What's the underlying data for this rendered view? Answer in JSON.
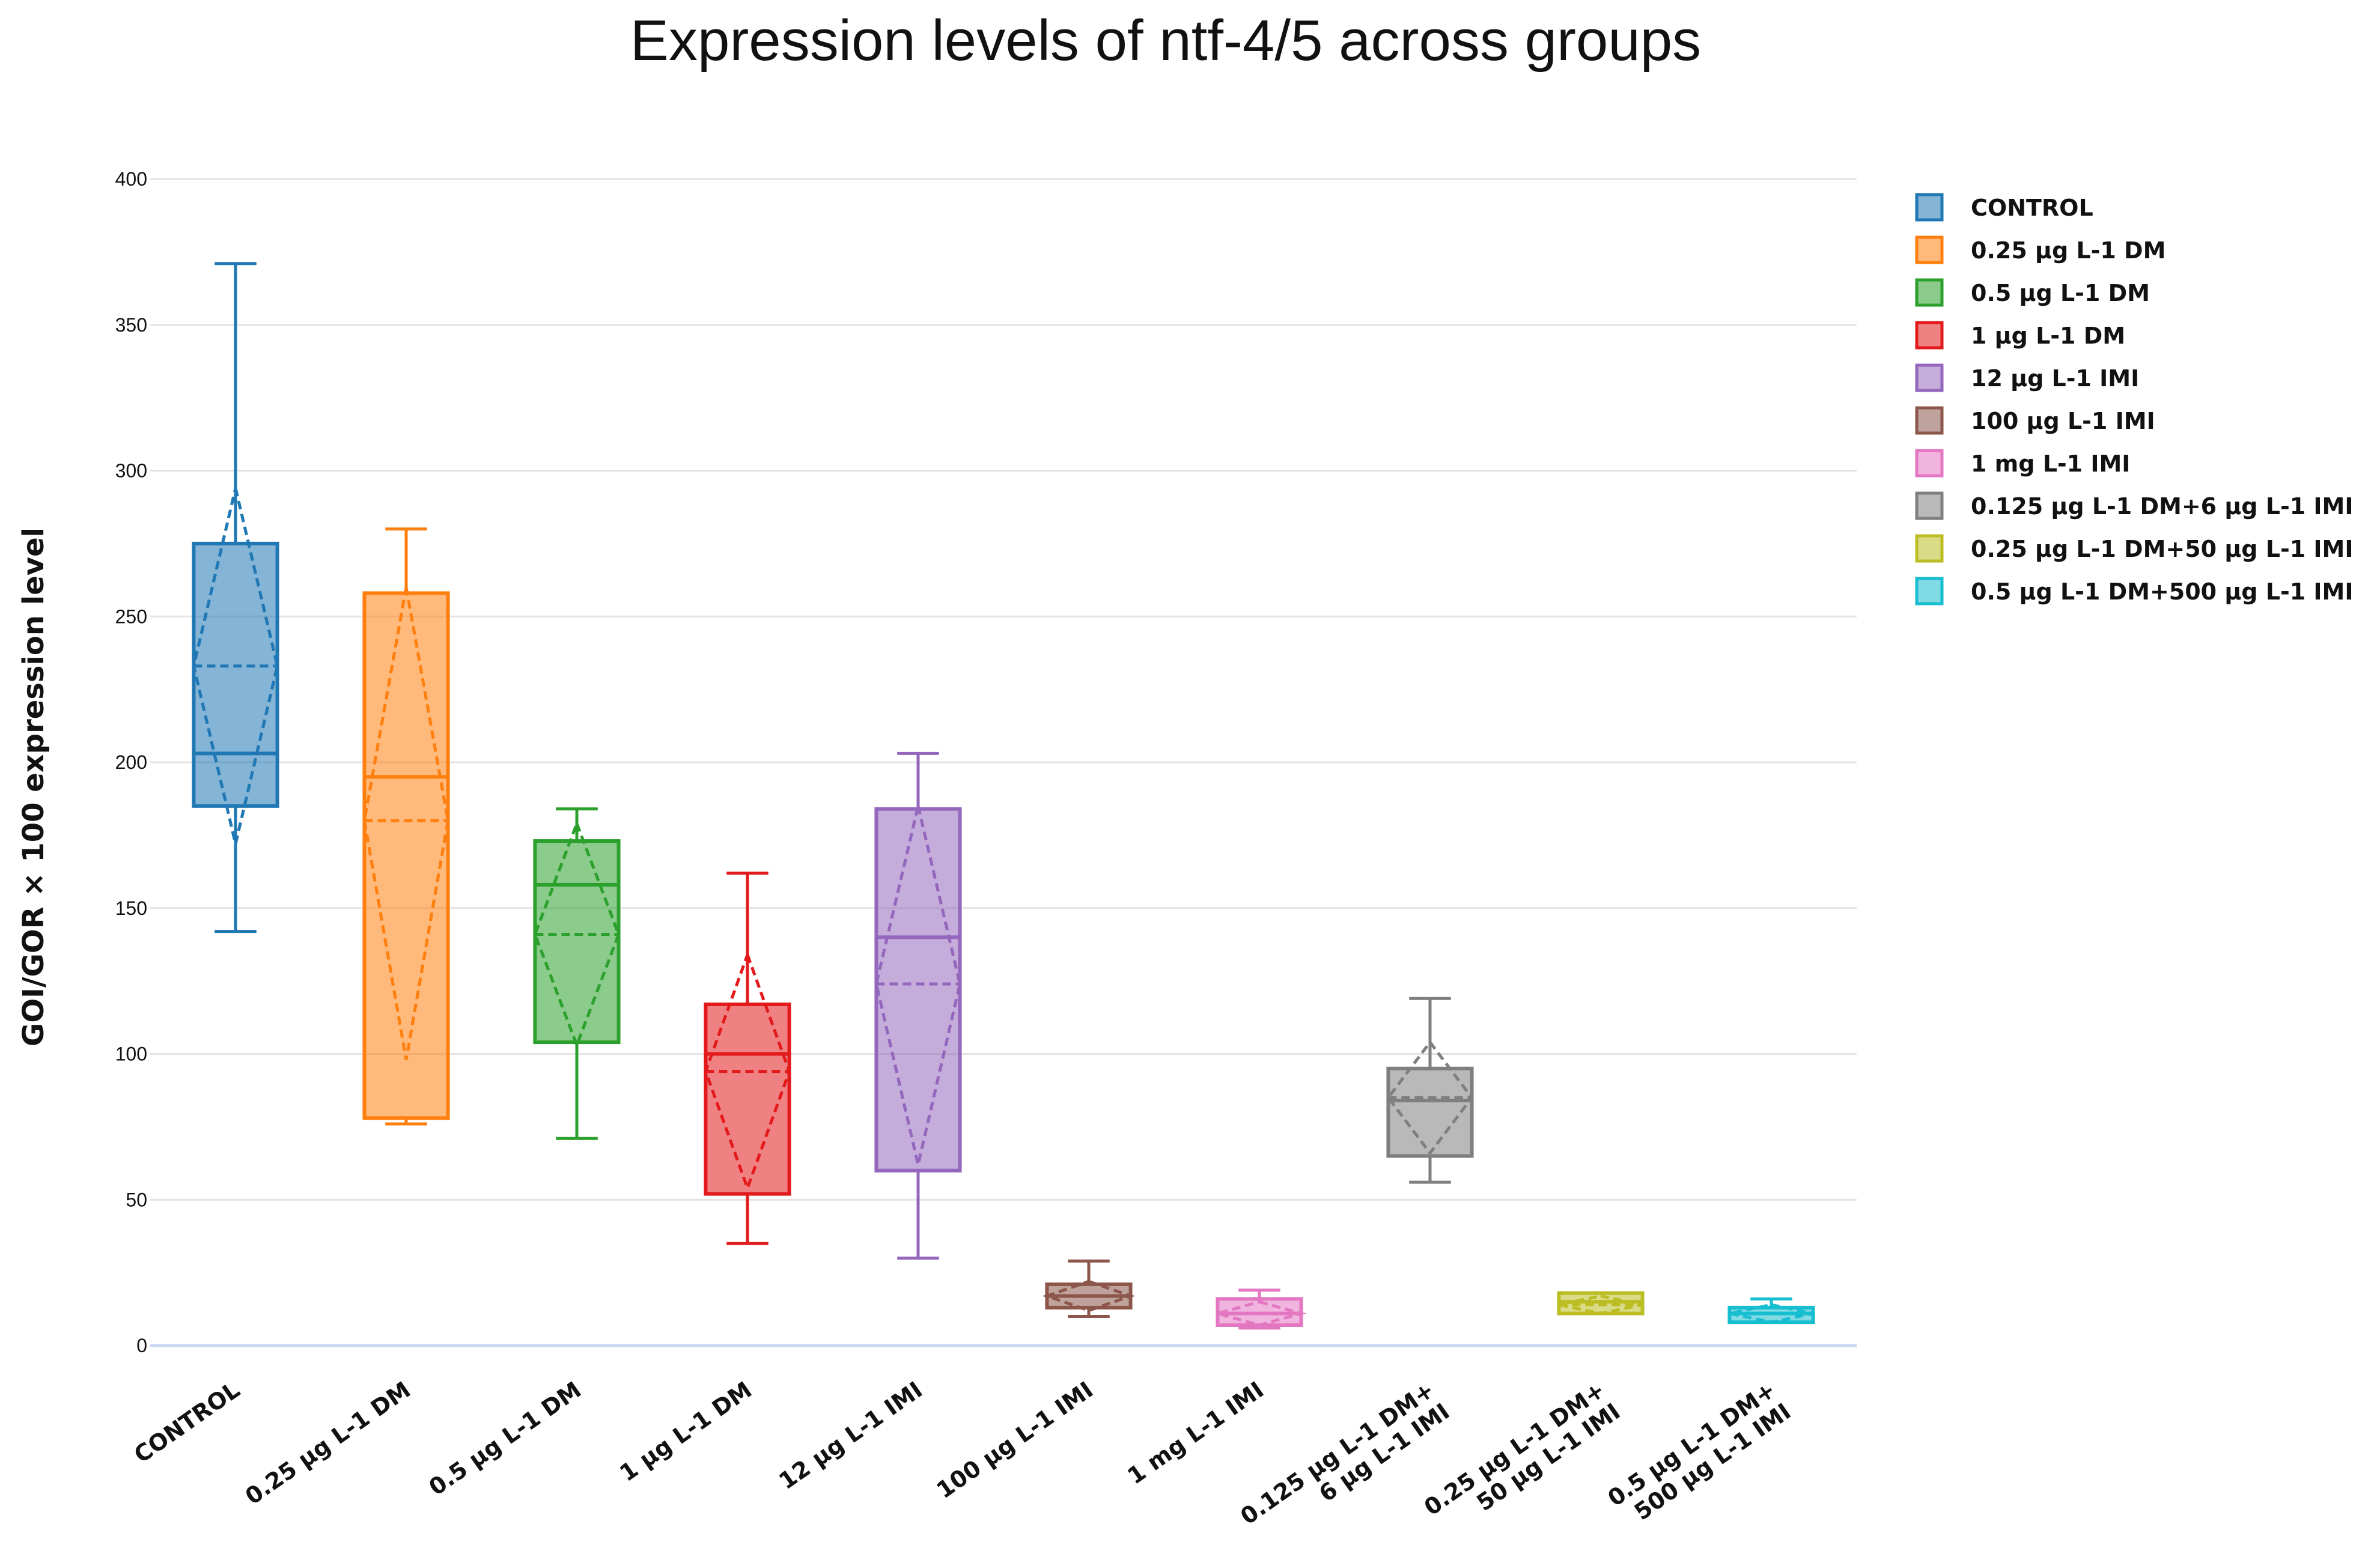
{
  "chart_data": {
    "type": "box",
    "title": "Expression levels of ntf-4/5 across groups",
    "ylabel": "GOI/GOR × 100 expression level",
    "xlabel": "",
    "ylim": [
      0,
      400
    ],
    "yticks": [
      0,
      50,
      100,
      150,
      200,
      250,
      300,
      350,
      400
    ],
    "grid": true,
    "legend_position": "top-right",
    "series": [
      {
        "name": "CONTROL",
        "label_lines": [
          "CONTROL"
        ],
        "color": "#1f77b4",
        "min": 142,
        "q1": 185,
        "median": 203,
        "q3": 275,
        "max": 371,
        "mean": 233,
        "mean_low": 172,
        "mean_high": 294
      },
      {
        "name": "0.25 µg L-1 DM",
        "label_lines": [
          "0.25 µg L-1 DM"
        ],
        "color": "#ff7f0e",
        "min": 76,
        "q1": 78,
        "median": 195,
        "q3": 258,
        "max": 280,
        "mean": 180,
        "mean_low": 98,
        "mean_high": 260
      },
      {
        "name": "0.5 µg L-1 DM",
        "label_lines": [
          "0.5 µg L-1 DM"
        ],
        "color": "#2ca02c",
        "min": 71,
        "q1": 104,
        "median": 158,
        "q3": 173,
        "max": 184,
        "mean": 141,
        "mean_low": 103,
        "mean_high": 179
      },
      {
        "name": "1 µg L-1 DM",
        "label_lines": [
          "1 µg L-1 DM"
        ],
        "color": "#e31a1c",
        "min": 35,
        "q1": 52,
        "median": 100,
        "q3": 117,
        "max": 162,
        "mean": 94,
        "mean_low": 54,
        "mean_high": 134
      },
      {
        "name": "12 µg L-1 IMI",
        "label_lines": [
          "12 µg L-1 IMI"
        ],
        "color": "#9467bd",
        "min": 30,
        "q1": 60,
        "median": 140,
        "q3": 184,
        "max": 203,
        "mean": 124,
        "mean_low": 62,
        "mean_high": 185
      },
      {
        "name": "100 µg L-1 IMI",
        "label_lines": [
          "100 µg L-1 IMI"
        ],
        "color": "#8c564b",
        "min": 10,
        "q1": 13,
        "median": 17,
        "q3": 21,
        "max": 29,
        "mean": 17,
        "mean_low": 12,
        "mean_high": 22
      },
      {
        "name": "1 mg L-1 IMI",
        "label_lines": [
          "1 mg L-1 IMI"
        ],
        "color": "#e377c2",
        "min": 6,
        "q1": 7,
        "median": 11,
        "q3": 16,
        "max": 19,
        "mean": 11,
        "mean_low": 7,
        "mean_high": 15
      },
      {
        "name": "0.125 µg L-1 DM+6 µg L-1 IMI",
        "label_lines": [
          "0.125 µg L-1 DM+",
          "6 µg L-1 IMI"
        ],
        "color": "#7f7f7f",
        "min": 56,
        "q1": 65,
        "median": 84,
        "q3": 95,
        "max": 119,
        "mean": 85,
        "mean_low": 66,
        "mean_high": 104
      },
      {
        "name": "0.25 µg L-1 DM+50 µg L-1 IMI",
        "label_lines": [
          "0.25 µg L-1 DM+",
          "50 µg L-1 IMI"
        ],
        "color": "#bcbd22",
        "min": 11,
        "q1": 11,
        "median": 15,
        "q3": 18,
        "max": 18,
        "mean": 14,
        "mean_low": 11,
        "mean_high": 17
      },
      {
        "name": "0.5 µg L-1 DM+500 µg L-1 IMI",
        "label_lines": [
          "0.5 µg L-1 DM+",
          "500 µg L-1 IMI"
        ],
        "color": "#17becf",
        "min": 8,
        "q1": 8,
        "median": 11,
        "q3": 13,
        "max": 16,
        "mean": 11,
        "mean_low": 8,
        "mean_high": 14
      }
    ]
  }
}
